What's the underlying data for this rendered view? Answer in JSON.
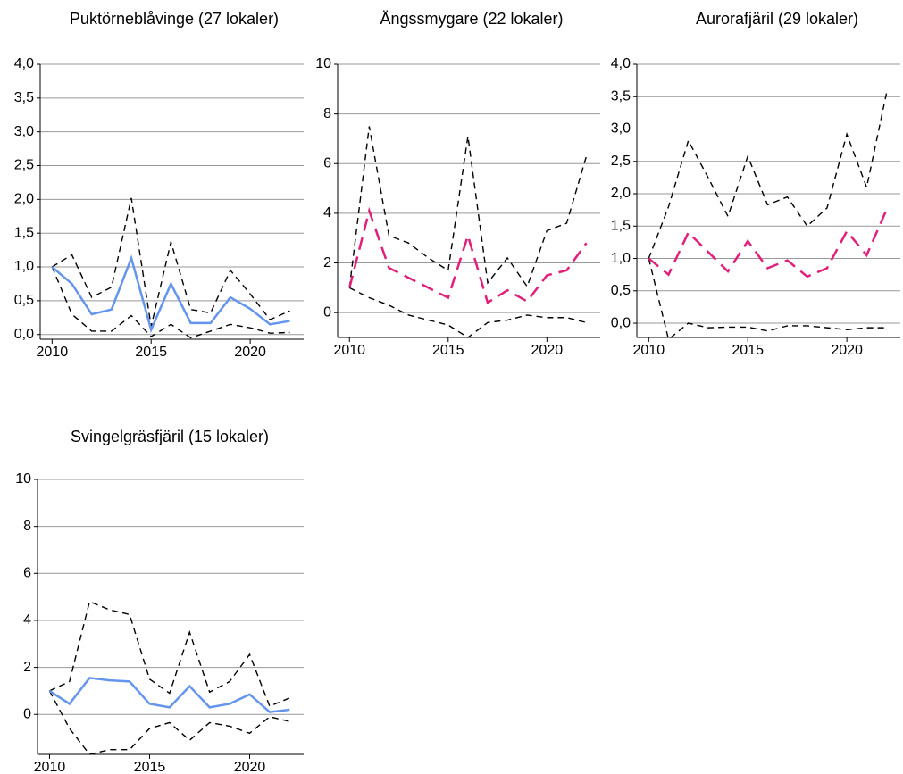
{
  "chart_data": [
    {
      "type": "line",
      "title": "Puktörneblåvinge (27 lokaler)",
      "x": [
        2010,
        2011,
        2012,
        2013,
        2014,
        2015,
        2016,
        2017,
        2018,
        2019,
        2020,
        2021,
        2022
      ],
      "xlim": [
        2009.4,
        2022.7
      ],
      "xticks": [
        2010,
        2015,
        2020
      ],
      "ylim": [
        -0.07,
        4.0
      ],
      "yticks": [
        {
          "value": 0,
          "label": "0,0"
        },
        {
          "value": 0.5,
          "label": "0,5"
        },
        {
          "value": 1,
          "label": "1,0"
        },
        {
          "value": 1.5,
          "label": "1,5"
        },
        {
          "value": 2,
          "label": "2,0"
        },
        {
          "value": 2.5,
          "label": "2,5"
        },
        {
          "value": 3,
          "label": "3,0"
        },
        {
          "value": 3.5,
          "label": "3,5"
        },
        {
          "value": 4,
          "label": "4,0"
        }
      ],
      "grid": true,
      "series": [
        {
          "color": "#000000",
          "style": "dashed",
          "values": [
            1.0,
            1.18,
            0.55,
            0.7,
            2.02,
            0.12,
            1.37,
            0.37,
            0.32,
            0.95,
            0.6,
            0.22,
            0.35
          ]
        },
        {
          "color": "#000000",
          "style": "dashed",
          "values": [
            1.0,
            0.3,
            0.05,
            0.05,
            0.28,
            -0.03,
            0.15,
            -0.05,
            0.05,
            0.15,
            0.1,
            0.02,
            0.03
          ]
        },
        {
          "color": "#6495ed",
          "style": "solid",
          "values": [
            1.0,
            0.75,
            0.3,
            0.37,
            1.13,
            0.07,
            0.75,
            0.17,
            0.17,
            0.55,
            0.38,
            0.15,
            0.2
          ]
        }
      ]
    },
    {
      "type": "line",
      "title": "Ängssmygare (22 lokaler)",
      "x": [
        2010,
        2011,
        2012,
        2013,
        2014,
        2015,
        2016,
        2017,
        2018,
        2019,
        2020,
        2021,
        2022
      ],
      "xlim": [
        2009.4,
        2022.7
      ],
      "xticks": [
        2010,
        2015,
        2020
      ],
      "ylim": [
        -1,
        10
      ],
      "yticks": [
        0,
        2,
        4,
        6,
        8,
        10
      ],
      "grid": true,
      "series": [
        {
          "color": "#000000",
          "style": "dashed",
          "values": [
            1.0,
            7.5,
            3.1,
            2.8,
            2.2,
            1.7,
            7.1,
            1.2,
            2.2,
            1.05,
            3.3,
            3.6,
            6.3
          ]
        },
        {
          "color": "#000000",
          "style": "dashed",
          "values": [
            1.0,
            0.6,
            0.3,
            -0.1,
            -0.3,
            -0.5,
            -1.0,
            -0.4,
            -0.3,
            -0.1,
            -0.2,
            -0.2,
            -0.4
          ]
        },
        {
          "color": "#e0207a",
          "style": "longdash",
          "values": [
            1.0,
            4.1,
            1.8,
            1.4,
            1.0,
            0.6,
            3.1,
            0.4,
            0.9,
            0.45,
            1.5,
            1.7,
            2.8
          ]
        }
      ]
    },
    {
      "type": "line",
      "title": "Aurorafjäril (29 lokaler)",
      "x": [
        2010,
        2011,
        2012,
        2013,
        2014,
        2015,
        2016,
        2017,
        2018,
        2019,
        2020,
        2021,
        2022
      ],
      "xlim": [
        2009.4,
        2022.7
      ],
      "xticks": [
        2010,
        2015,
        2020
      ],
      "ylim": [
        -0.22,
        4.0
      ],
      "yticks": [
        {
          "value": 0,
          "label": "0,0"
        },
        {
          "value": 0.5,
          "label": "0,5"
        },
        {
          "value": 1,
          "label": "1,0"
        },
        {
          "value": 1.5,
          "label": "1,5"
        },
        {
          "value": 2,
          "label": "2,0"
        },
        {
          "value": 2.5,
          "label": "2,5"
        },
        {
          "value": 3,
          "label": "3,0"
        },
        {
          "value": 3.5,
          "label": "3,5"
        },
        {
          "value": 4,
          "label": "4,0"
        }
      ],
      "grid": true,
      "series": [
        {
          "color": "#000000",
          "style": "dashed",
          "values": [
            1.0,
            1.8,
            2.82,
            2.25,
            1.65,
            2.58,
            1.83,
            1.95,
            1.5,
            1.78,
            2.92,
            2.1,
            3.55
          ]
        },
        {
          "color": "#000000",
          "style": "dashed",
          "values": [
            1.0,
            -0.25,
            0.0,
            -0.07,
            -0.06,
            -0.06,
            -0.12,
            -0.04,
            -0.04,
            -0.07,
            -0.1,
            -0.07,
            -0.07
          ]
        },
        {
          "color": "#e0207a",
          "style": "longdash",
          "values": [
            1.0,
            0.75,
            1.4,
            1.1,
            0.8,
            1.27,
            0.85,
            0.97,
            0.72,
            0.85,
            1.42,
            1.05,
            1.75
          ]
        }
      ]
    },
    {
      "type": "line",
      "title": "Svingelgräsfjäril (15 lokaler)",
      "x": [
        2010,
        2011,
        2012,
        2013,
        2014,
        2015,
        2016,
        2017,
        2018,
        2019,
        2020,
        2021,
        2022
      ],
      "xlim": [
        2009.4,
        2022.7
      ],
      "xticks": [
        2010,
        2015,
        2020
      ],
      "ylim": [
        -1.7,
        10
      ],
      "yticks": [
        0,
        2,
        4,
        6,
        8,
        10
      ],
      "grid": true,
      "series": [
        {
          "color": "#000000",
          "style": "dashed",
          "values": [
            1.0,
            1.4,
            4.8,
            4.45,
            4.25,
            1.5,
            0.9,
            3.5,
            0.95,
            1.4,
            2.55,
            0.35,
            0.7
          ]
        },
        {
          "color": "#000000",
          "style": "dashed",
          "values": [
            1.0,
            -0.6,
            -1.7,
            -1.5,
            -1.5,
            -0.6,
            -0.35,
            -1.1,
            -0.35,
            -0.5,
            -0.8,
            -0.1,
            -0.3
          ]
        },
        {
          "color": "#6495ed",
          "style": "solid",
          "values": [
            1.0,
            0.45,
            1.55,
            1.45,
            1.4,
            0.45,
            0.3,
            1.2,
            0.3,
            0.45,
            0.85,
            0.1,
            0.2
          ]
        }
      ]
    }
  ]
}
